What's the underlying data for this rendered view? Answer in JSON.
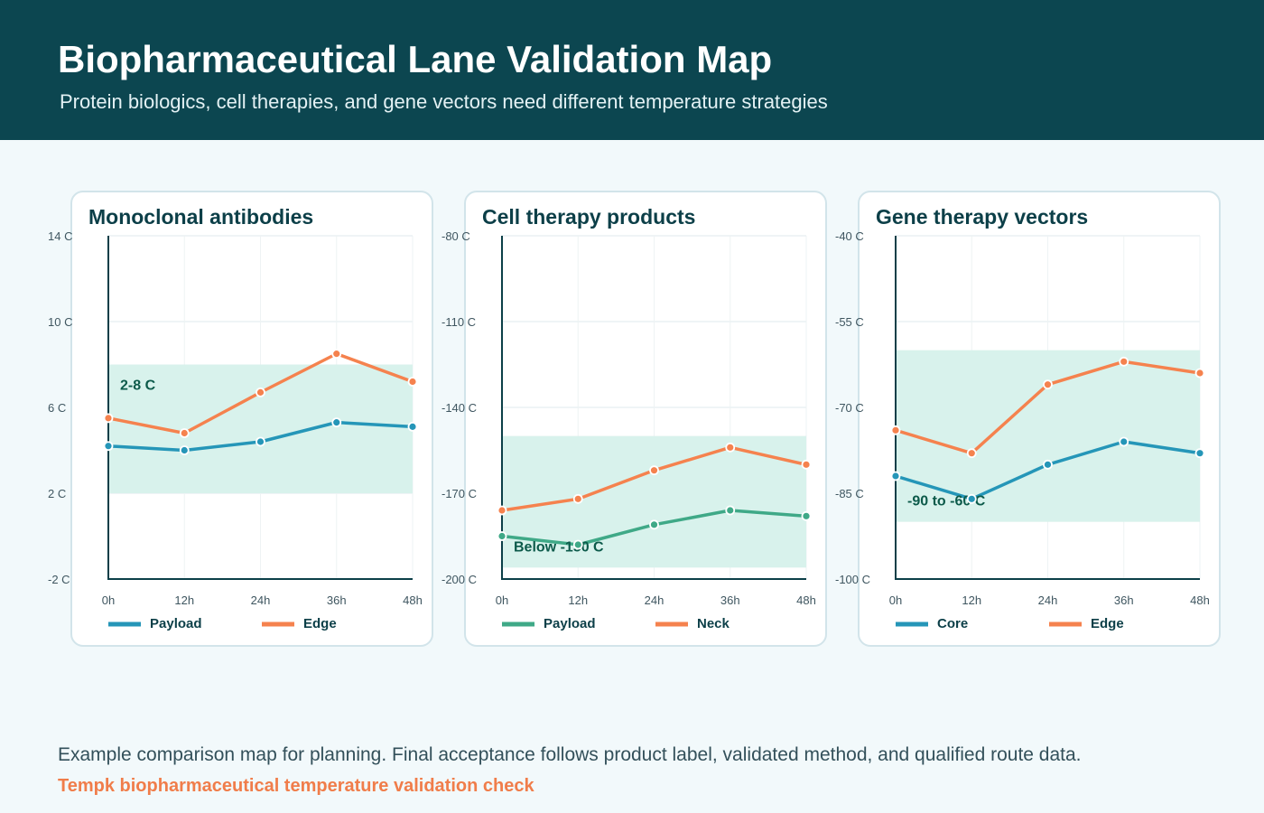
{
  "header": {
    "title": "Biopharmaceutical Lane Validation Map",
    "subtitle": "Protein biologics, cell therapies, and gene vectors need different temperature strategies"
  },
  "colors": {
    "header_bg": "#0c4650",
    "blue": "#2596b8",
    "green": "#3fa987",
    "orange": "#f5824e",
    "band": "#d8f2ec",
    "band_label": "#0c5a4a"
  },
  "chart_data": [
    {
      "type": "line",
      "title": "Monoclonal antibodies",
      "x": [
        "0h",
        "12h",
        "24h",
        "36h",
        "48h"
      ],
      "yticks": [
        "14 C",
        "10 C",
        "6 C",
        "2 C",
        "-2 C"
      ],
      "ylim": [
        -2,
        14
      ],
      "band": {
        "from": 2,
        "to": 8,
        "label": "2-8 C"
      },
      "grid": true,
      "legend_position": "bottom-left",
      "series": [
        {
          "name": "Payload",
          "color": "#2596b8",
          "values": [
            4.2,
            4.0,
            4.4,
            5.3,
            5.1
          ]
        },
        {
          "name": "Edge",
          "color": "#f5824e",
          "values": [
            5.5,
            4.8,
            6.7,
            8.5,
            7.2
          ]
        }
      ]
    },
    {
      "type": "line",
      "title": "Cell therapy products",
      "x": [
        "0h",
        "12h",
        "24h",
        "36h",
        "48h"
      ],
      "yticks": [
        "-80 C",
        "-110 C",
        "-140 C",
        "-170 C",
        "-200 C"
      ],
      "ylim": [
        -200,
        -80
      ],
      "band": {
        "from": -196,
        "to": -150,
        "label": "Below -150 C"
      },
      "grid": true,
      "legend_position": "bottom-left",
      "series": [
        {
          "name": "Payload",
          "color": "#3fa987",
          "values": [
            -185,
            -188,
            -181,
            -176,
            -178
          ]
        },
        {
          "name": "Neck",
          "color": "#f5824e",
          "values": [
            -176,
            -172,
            -162,
            -154,
            -160
          ]
        }
      ]
    },
    {
      "type": "line",
      "title": "Gene therapy vectors",
      "x": [
        "0h",
        "12h",
        "24h",
        "36h",
        "48h"
      ],
      "yticks": [
        "-40 C",
        "-55 C",
        "-70 C",
        "-85 C",
        "-100 C"
      ],
      "ylim": [
        -100,
        -40
      ],
      "band": {
        "from": -90,
        "to": -60,
        "label": "-90 to -60 C"
      },
      "grid": true,
      "legend_position": "bottom-left",
      "series": [
        {
          "name": "Core",
          "color": "#2596b8",
          "values": [
            -82,
            -86,
            -80,
            -76,
            -78
          ]
        },
        {
          "name": "Edge",
          "color": "#f5824e",
          "values": [
            -74,
            -78,
            -66,
            -62,
            -64
          ]
        }
      ]
    }
  ],
  "footer": {
    "note": "Example comparison map for planning. Final acceptance follows product label, validated method, and qualified route data.",
    "brand": "Tempk biopharmaceutical temperature validation check"
  }
}
